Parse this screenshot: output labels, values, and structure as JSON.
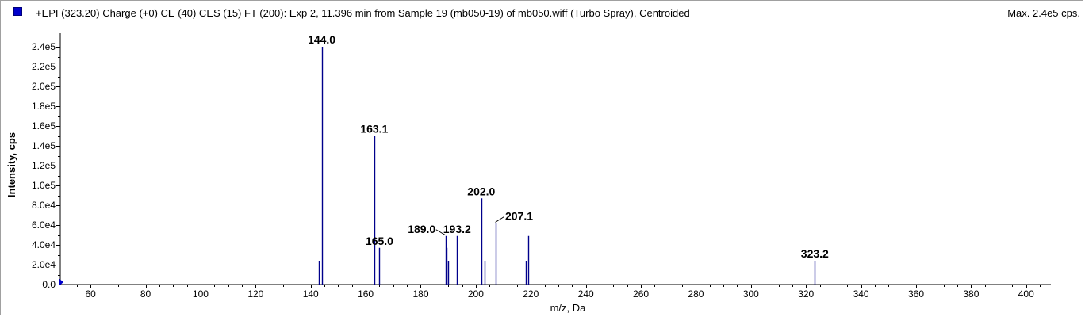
{
  "header": {
    "title": "+EPI (323.20) Charge (+0) CE (40) CES (15) FT (200): Exp 2, 11.396 min from Sample 19 (mb050-19) of mb050.wiff (Turbo Spray), Centroided",
    "max_label": "Max. 2.4e5 cps."
  },
  "colors": {
    "series": "#00008b",
    "axis": "#000000",
    "legend_swatch": "#0000cc"
  },
  "chart_data": {
    "type": "bar",
    "title": "+EPI (323.20) Charge (+0) CE (40) CES (15) FT (200): Exp 2, 11.396 min from Sample 19 (mb050-19) of mb050.wiff (Turbo Spray), Centroided",
    "xlabel": "m/z, Da",
    "ylabel": "Intensity, cps",
    "xlim": [
      49,
      409
    ],
    "ylim": [
      0,
      240000
    ],
    "x_ticks": [
      60,
      80,
      100,
      120,
      140,
      160,
      180,
      200,
      220,
      240,
      260,
      280,
      300,
      320,
      340,
      360,
      380,
      400
    ],
    "x_tick_labels": [
      "60",
      "80",
      "100",
      "120",
      "140",
      "160",
      "180",
      "200",
      "220",
      "240",
      "260",
      "280",
      "300",
      "320",
      "340",
      "360",
      "380",
      "400"
    ],
    "y_ticks": [
      0,
      20000,
      40000,
      60000,
      80000,
      100000,
      120000,
      140000,
      160000,
      180000,
      200000,
      220000,
      240000
    ],
    "y_tick_labels": [
      "0.0",
      "2.0e4",
      "4.0e4",
      "6.0e4",
      "8.0e4",
      "1.0e5",
      "1.2e5",
      "1.4e5",
      "1.6e5",
      "1.8e5",
      "2.0e5",
      "2.2e5",
      "2.4e5"
    ],
    "grid": false,
    "legend": "top-left",
    "peaks": [
      {
        "mz": 142.9,
        "intensity": 24000
      },
      {
        "mz": 144.0,
        "intensity": 240000
      },
      {
        "mz": 163.1,
        "intensity": 150000
      },
      {
        "mz": 165.0,
        "intensity": 37000
      },
      {
        "mz": 189.0,
        "intensity": 49000
      },
      {
        "mz": 189.4,
        "intensity": 37000
      },
      {
        "mz": 190.0,
        "intensity": 24000
      },
      {
        "mz": 193.2,
        "intensity": 49000
      },
      {
        "mz": 202.0,
        "intensity": 87000
      },
      {
        "mz": 203.2,
        "intensity": 24000
      },
      {
        "mz": 207.1,
        "intensity": 62000
      },
      {
        "mz": 218.2,
        "intensity": 24000
      },
      {
        "mz": 219.2,
        "intensity": 49000
      },
      {
        "mz": 323.2,
        "intensity": 24000
      }
    ],
    "annotations": [
      {
        "text": "144.0",
        "mz": 144.0,
        "intensity": 240000
      },
      {
        "text": "163.1",
        "mz": 163.1,
        "intensity": 150000
      },
      {
        "text": "165.0",
        "mz": 165.0,
        "intensity": 37000
      },
      {
        "text": "189.0",
        "mz": 189.0,
        "intensity": 49000
      },
      {
        "text": "193.2",
        "mz": 193.2,
        "intensity": 49000
      },
      {
        "text": "202.0",
        "mz": 202.0,
        "intensity": 87000
      },
      {
        "text": "207.1",
        "mz": 207.1,
        "intensity": 62000
      },
      {
        "text": "323.2",
        "mz": 323.2,
        "intensity": 24000
      }
    ]
  }
}
